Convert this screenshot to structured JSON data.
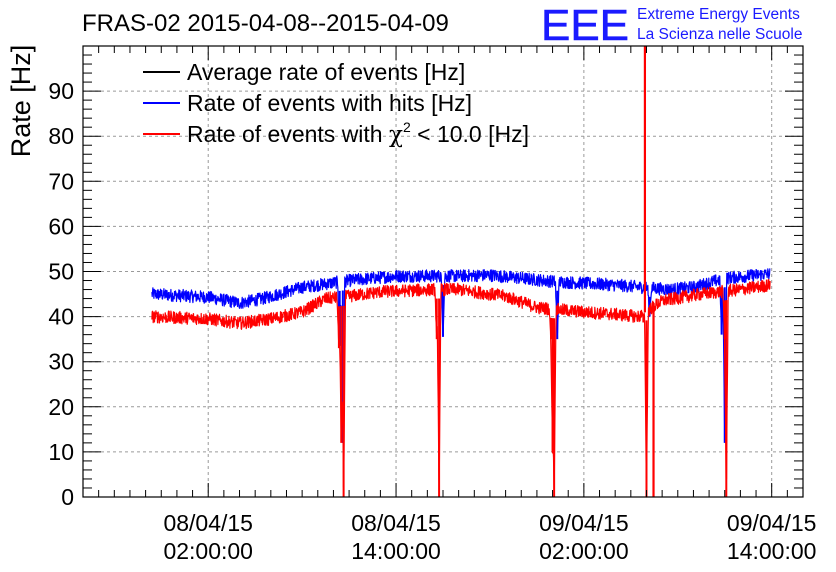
{
  "chart_data": {
    "type": "line",
    "title": "FRAS-02 2015-04-08--2015-04-09",
    "xlabel": "",
    "ylabel": "Rate [Hz]",
    "ylim": [
      0,
      100
    ],
    "yticks": [
      0,
      10,
      20,
      30,
      40,
      50,
      60,
      70,
      80,
      90
    ],
    "xlim_hours": [
      -6.0,
      40.0
    ],
    "x_unit": "hours since 08/04/15 00:00:00",
    "xticks": [
      {
        "hours": 2,
        "date": "08/04/15",
        "time": "02:00:00"
      },
      {
        "hours": 14,
        "date": "08/04/15",
        "time": "14:00:00"
      },
      {
        "hours": 26,
        "date": "09/04/15",
        "time": "02:00:00"
      },
      {
        "hours": 38,
        "date": "09/04/15",
        "time": "14:00:00"
      }
    ],
    "grid": true,
    "legend_position": "top-left",
    "logo": {
      "mark": "EEE",
      "line1": "Extreme Energy Events",
      "line2": "La Scienza nelle Scuole"
    },
    "colors": {
      "avg": "#000000",
      "hits": "#0000ff",
      "chi2": "#ff0000",
      "logo": "#1a1aff"
    },
    "series": [
      {
        "key": "avg",
        "name": "Average rate of events [Hz]",
        "legend_prefix": "Average rate of events [Hz]",
        "legend_sup": "",
        "legend_suffix": "",
        "color": "#000000",
        "points": [
          [
            -1.6,
            45.5
          ],
          [
            37.9,
            49.5
          ]
        ]
      },
      {
        "key": "hits",
        "name": "Rate of events with hits [Hz]",
        "legend_prefix": "Rate of events with hits [Hz]",
        "legend_sup": "",
        "legend_suffix": "",
        "color": "#0000ff",
        "noise": 1.4,
        "points": [
          [
            -1.6,
            45.0
          ],
          [
            2.0,
            44.3
          ],
          [
            4.0,
            43.0
          ],
          [
            5.5,
            44.0
          ],
          [
            8.0,
            46.5
          ],
          [
            11.0,
            48.0
          ],
          [
            14.0,
            49.0
          ],
          [
            18.0,
            49.0
          ],
          [
            20.0,
            49.2
          ],
          [
            24.0,
            47.8
          ],
          [
            28.0,
            47.0
          ],
          [
            31.5,
            46.0
          ],
          [
            33.0,
            46.5
          ],
          [
            35.0,
            48.5
          ],
          [
            37.9,
            49.5
          ]
        ],
        "dips": [
          [
            10.4,
            33.5
          ],
          [
            10.6,
            12.0
          ],
          [
            17.0,
            35.5
          ],
          [
            24.3,
            35.0
          ],
          [
            30.2,
            40.0
          ],
          [
            34.8,
            36.0
          ],
          [
            35.0,
            12.0
          ]
        ]
      },
      {
        "key": "chi2",
        "name": "Rate of events with chi2 < 10.0 [Hz]",
        "legend_prefix": "Rate of events with ",
        "legend_chi": "χ",
        "legend_sup": "2",
        "legend_suffix": " < 10.0 [Hz]",
        "color": "#ff0000",
        "noise": 1.4,
        "points": [
          [
            -1.6,
            40.0
          ],
          [
            2.0,
            39.5
          ],
          [
            4.0,
            38.5
          ],
          [
            6.0,
            39.5
          ],
          [
            8.0,
            41.0
          ],
          [
            9.5,
            44.0
          ],
          [
            11.0,
            44.5
          ],
          [
            13.0,
            45.5
          ],
          [
            16.5,
            46.0
          ],
          [
            18.0,
            46.0
          ],
          [
            21.0,
            44.5
          ],
          [
            23.0,
            42.0
          ],
          [
            26.0,
            41.0
          ],
          [
            28.0,
            40.5
          ],
          [
            29.5,
            40.0
          ],
          [
            31.0,
            43.5
          ],
          [
            33.5,
            45.0
          ],
          [
            36.0,
            46.0
          ],
          [
            37.9,
            47.0
          ]
        ],
        "dips": [
          [
            10.35,
            33.0
          ],
          [
            10.5,
            12.0
          ],
          [
            10.65,
            0.0
          ],
          [
            16.6,
            35.0
          ],
          [
            16.75,
            0.0
          ],
          [
            23.9,
            35.0
          ],
          [
            24.0,
            10.0
          ],
          [
            24.1,
            0.0
          ],
          [
            29.8,
            40.0
          ],
          [
            30.0,
            0.0
          ],
          [
            35.0,
            35.0
          ],
          [
            35.1,
            0.0
          ]
        ],
        "spikes": [
          [
            29.9,
            100.0
          ],
          [
            30.45,
            0.0
          ]
        ]
      }
    ]
  }
}
